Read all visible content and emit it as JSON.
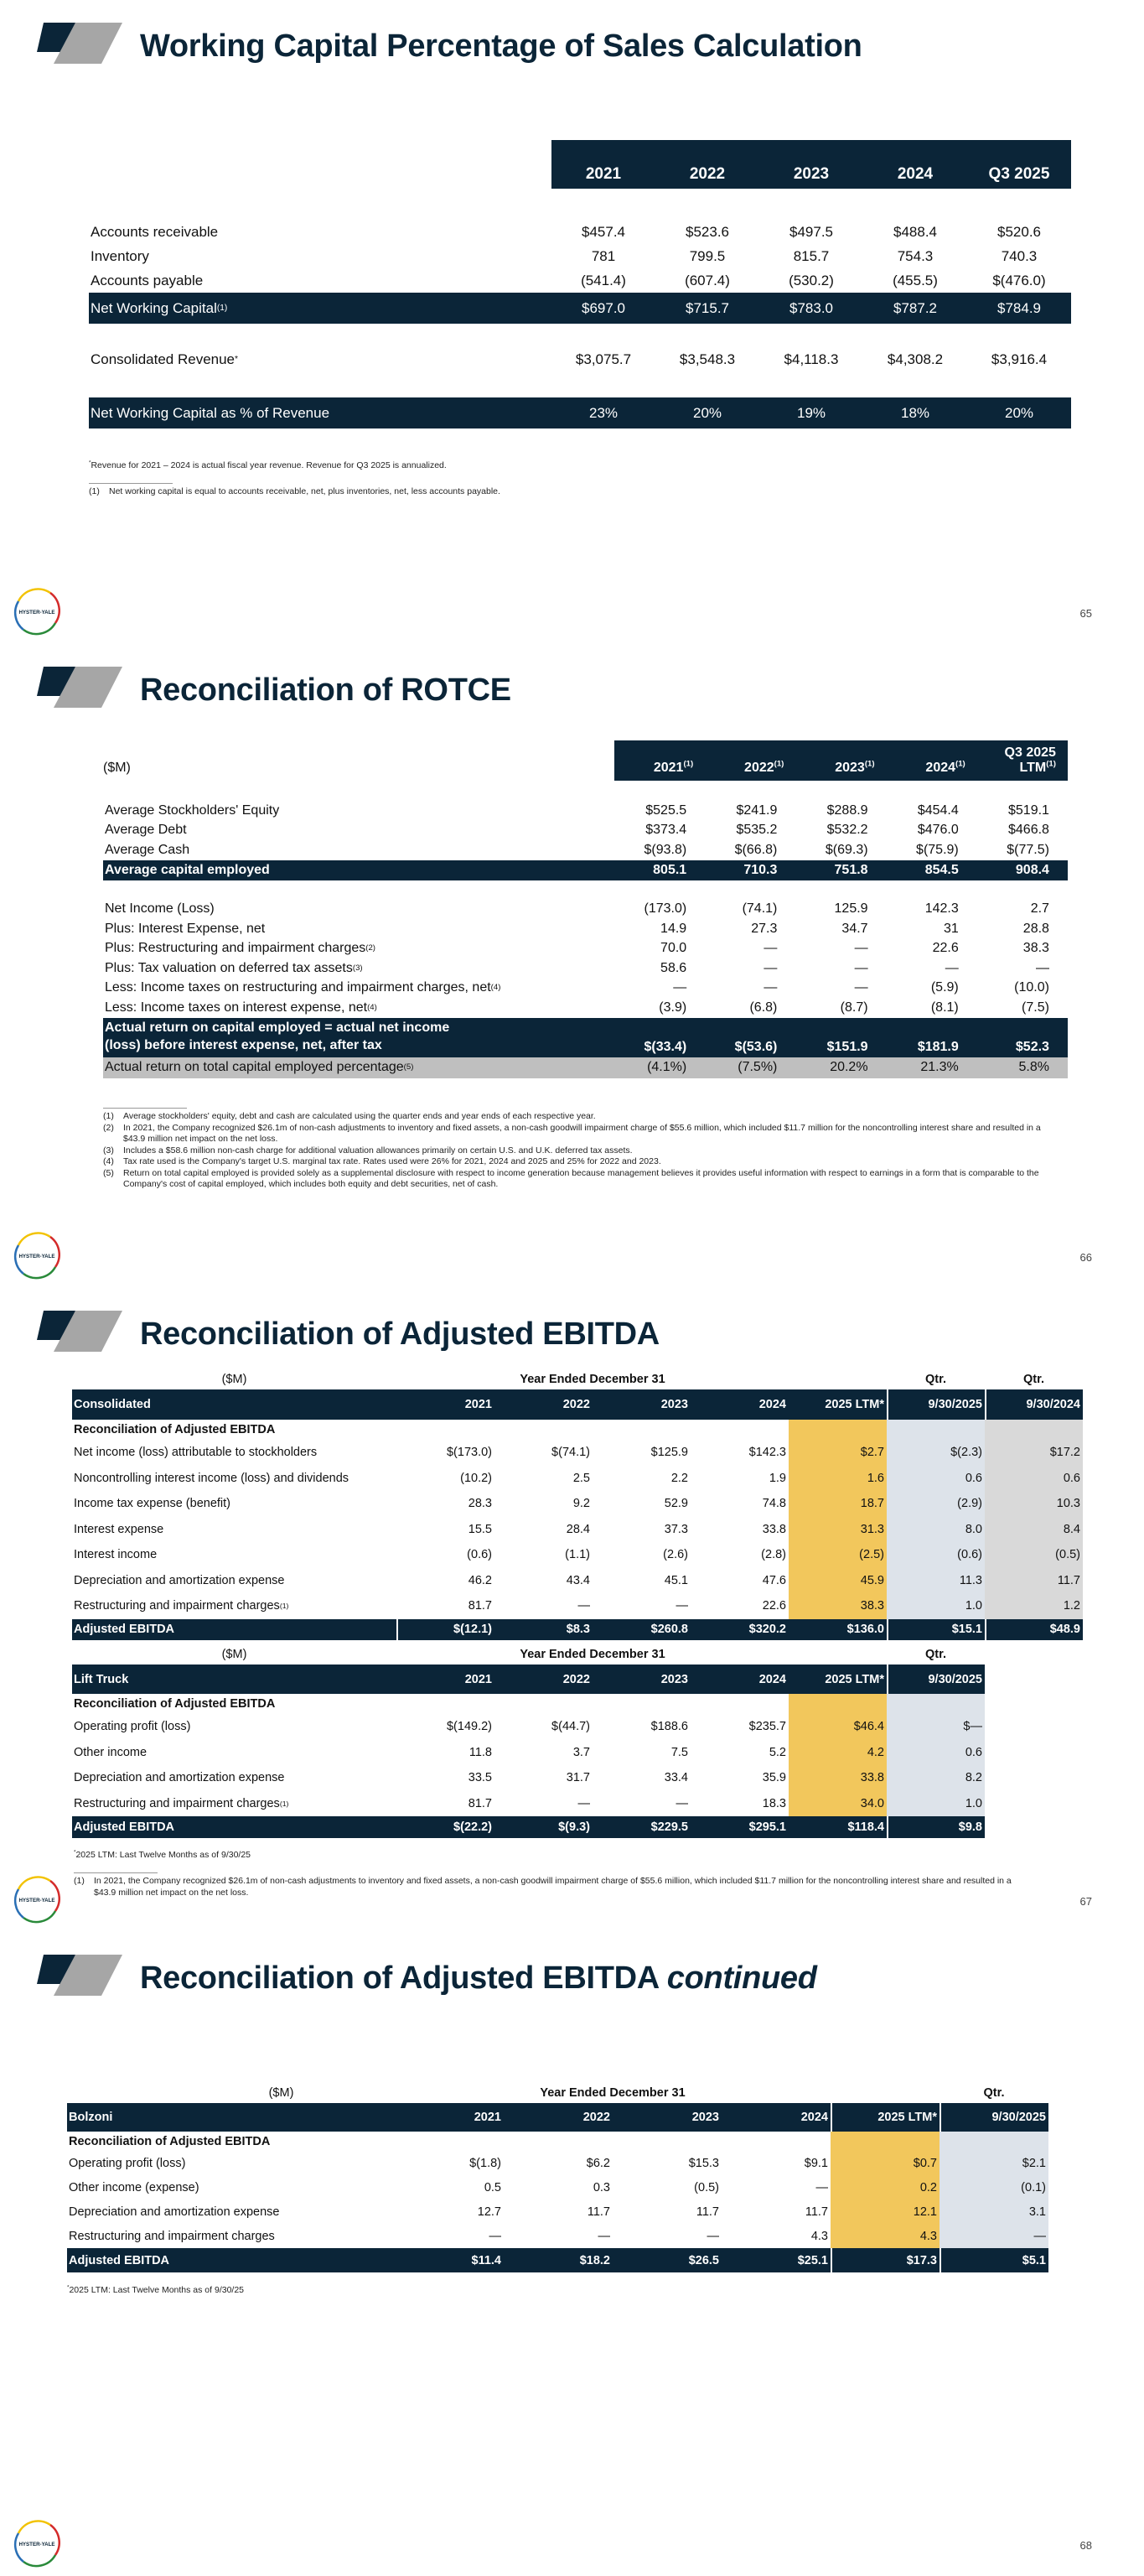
{
  "brand": {
    "logo_text": "HYSTER-YALE",
    "navy": "#0b2538",
    "gray": "#a6a6a6",
    "ltm_highlight": "#f2c75c",
    "qtr_highlight": "#dde3ea",
    "qtr_prior_highlight": "#d9d9d9"
  },
  "slide1": {
    "title": "Working Capital Percentage of Sales Calculation",
    "page": "65",
    "table": {
      "columns": [
        "2021",
        "2022",
        "2023",
        "2024",
        "Q3 2025"
      ],
      "rows": [
        {
          "label": "Accounts receivable",
          "values": [
            "$457.4",
            "$523.6",
            "$497.5",
            "$488.4",
            "$520.6"
          ],
          "kind": "normal"
        },
        {
          "label": "Inventory",
          "values": [
            "781",
            "799.5",
            "815.7",
            "754.3",
            "740.3"
          ],
          "kind": "normal"
        },
        {
          "label": "Accounts payable",
          "values": [
            "(541.4)",
            "(607.4)",
            "(530.2)",
            "(455.5)",
            "$(476.0)"
          ],
          "kind": "normal"
        },
        {
          "label": "Net Working Capital",
          "sup": "(1)",
          "values": [
            "$697.0",
            "$715.7",
            "$783.0",
            "$787.2",
            "$784.9"
          ],
          "kind": "total"
        },
        {
          "label": "Consolidated Revenue",
          "sup": "*",
          "values": [
            "$3,075.7",
            "$3,548.3",
            "$4,118.3",
            "$4,308.2",
            "$3,916.4"
          ],
          "kind": "normal"
        },
        {
          "label": "Net Working Capital as % of Revenue",
          "values": [
            "23%",
            "20%",
            "19%",
            "18%",
            "20%"
          ],
          "kind": "total"
        }
      ]
    },
    "note_star": "Revenue for 2021 – 2024 is actual fiscal year revenue. Revenue for Q3 2025 is annualized.",
    "footnotes": [
      {
        "num": "(1)",
        "text": "Net working capital is equal to accounts receivable, net, plus inventories, net, less accounts payable."
      }
    ]
  },
  "slide2": {
    "title": "Reconciliation of ROTCE",
    "page": "66",
    "table": {
      "header_label": "($M)",
      "columns": [
        {
          "label": "2021",
          "sup": "(1)"
        },
        {
          "label": "2022",
          "sup": "(1)"
        },
        {
          "label": "2023",
          "sup": "(1)"
        },
        {
          "label": "2024",
          "sup": "(1)"
        },
        {
          "top": "Q3 2025",
          "label": "LTM",
          "sup": "(1)"
        }
      ],
      "rows": [
        {
          "label": "Average Stockholders' Equity",
          "values": [
            "$525.5",
            "$241.9",
            "$288.9",
            "$454.4",
            "$519.1"
          ],
          "kind": "normal"
        },
        {
          "label": "Average Debt",
          "values": [
            "$373.4",
            "$535.2",
            "$532.2",
            "$476.0",
            "$466.8"
          ],
          "kind": "normal"
        },
        {
          "label": "Average Cash",
          "values": [
            "$(93.8)",
            "$(66.8)",
            "$(69.3)",
            "$(75.9)",
            "$(77.5)"
          ],
          "kind": "normal"
        },
        {
          "label": "Average capital employed",
          "values": [
            "805.1",
            "710.3",
            "751.8",
            "854.5",
            "908.4"
          ],
          "kind": "total"
        },
        {
          "label": "Net Income (Loss)",
          "values": [
            "(173.0)",
            "(74.1)",
            "125.9",
            "142.3",
            "2.7"
          ],
          "kind": "normal"
        },
        {
          "label": "Plus: Interest Expense, net",
          "values": [
            "14.9",
            "27.3",
            "34.7",
            "31",
            "28.8"
          ],
          "kind": "normal"
        },
        {
          "label": "Plus: Restructuring and impairment charges",
          "sup": "(2)",
          "values": [
            "70.0",
            "—",
            "—",
            "22.6",
            "38.3"
          ],
          "kind": "normal"
        },
        {
          "label": "Plus: Tax valuation on deferred tax assets",
          "sup": "(3)",
          "values": [
            "58.6",
            "—",
            "—",
            "—",
            "—"
          ],
          "kind": "normal"
        },
        {
          "label": "Less: Income taxes on restructuring and impairment charges, net",
          "sup": "(4)",
          "values": [
            "—",
            "—",
            "—",
            "(5.9)",
            "(10.0)"
          ],
          "kind": "normal"
        },
        {
          "label": "Less: Income taxes on interest expense, net",
          "sup": "(4)",
          "values": [
            "(3.9)",
            "(6.8)",
            "(8.7)",
            "(8.1)",
            "(7.5)"
          ],
          "kind": "normal"
        },
        {
          "label": "Actual return on capital employed = actual net income (loss) before interest expense, net, after tax",
          "values": [
            "$(33.4)",
            "$(53.6)",
            "$151.9",
            "$181.9",
            "$52.3"
          ],
          "kind": "total2"
        },
        {
          "label": "Actual return on total capital employed percentage",
          "sup": "(5)",
          "values": [
            "(4.1%)",
            "(7.5%)",
            "20.2%",
            "21.3%",
            "5.8%"
          ],
          "kind": "shaded"
        }
      ]
    },
    "footnotes": [
      {
        "num": "(1)",
        "text": "Average stockholders' equity, debt and cash are calculated using the quarter ends and year ends of each respective year."
      },
      {
        "num": "(2)",
        "text": "In 2021, the Company recognized $26.1m of non-cash adjustments to inventory and fixed assets, a non-cash goodwill impairment charge of $55.6 million, which included $11.7 million for the noncontrolling interest share and resulted in a $43.9 million net impact on the net loss."
      },
      {
        "num": "(3)",
        "text": "Includes a $58.6 million non-cash charge for additional valuation allowances primarily on certain U.S. and U.K. deferred tax assets."
      },
      {
        "num": "(4)",
        "text": "Tax rate used is the Company's target U.S. marginal tax rate. Rates used were 26% for 2021, 2024 and 2025 and 25% for 2022 and 2023."
      },
      {
        "num": "(5)",
        "text": "Return on total capital employed is provided solely as a supplemental disclosure with respect to income generation because management believes it provides useful information with respect to earnings in a form that is comparable to the Company's cost of capital employed, which includes both equity and debt securities, net of cash."
      }
    ]
  },
  "slide3": {
    "title": "Reconciliation of Adjusted EBITDA",
    "page": "67",
    "consolidated": {
      "superheader": {
        "unit": "($M)",
        "group": "Year Ended December 31",
        "qtr": [
          "Qtr.",
          "Qtr."
        ]
      },
      "header_label": "Consolidated",
      "columns": [
        "2021",
        "2022",
        "2023",
        "2024",
        "2025 LTM*",
        "9/30/2025",
        "9/30/2024"
      ],
      "rows": [
        {
          "label": "Reconciliation of Adjusted EBITDA",
          "values": [],
          "kind": "heading"
        },
        {
          "label": "Net income (loss) attributable to stockholders",
          "values": [
            "$(173.0)",
            "$(74.1)",
            "$125.9",
            "$142.3",
            "$2.7",
            "$(2.3)",
            "$17.2"
          ],
          "kind": "normal"
        },
        {
          "label": "Noncontrolling interest income (loss) and dividends",
          "values": [
            "(10.2)",
            "2.5",
            "2.2",
            "1.9",
            "1.6",
            "0.6",
            "0.6"
          ],
          "kind": "normal"
        },
        {
          "label": "Income tax expense (benefit)",
          "values": [
            "28.3",
            "9.2",
            "52.9",
            "74.8",
            "18.7",
            "(2.9)",
            "10.3"
          ],
          "kind": "normal"
        },
        {
          "label": "Interest expense",
          "values": [
            "15.5",
            "28.4",
            "37.3",
            "33.8",
            "31.3",
            "8.0",
            "8.4"
          ],
          "kind": "normal"
        },
        {
          "label": "Interest income",
          "values": [
            "(0.6)",
            "(1.1)",
            "(2.6)",
            "(2.8)",
            "(2.5)",
            "(0.6)",
            "(0.5)"
          ],
          "kind": "normal"
        },
        {
          "label": "Depreciation and amortization expense",
          "values": [
            "46.2",
            "43.4",
            "45.1",
            "47.6",
            "45.9",
            "11.3",
            "11.7"
          ],
          "kind": "normal"
        },
        {
          "label": "Restructuring and impairment charges",
          "sup": "(1)",
          "values": [
            "81.7",
            "—",
            "—",
            "22.6",
            "38.3",
            "1.0",
            "1.2"
          ],
          "kind": "normal"
        },
        {
          "label": "Adjusted EBITDA",
          "values": [
            "$(12.1)",
            "$8.3",
            "$260.8",
            "$320.2",
            "$136.0",
            "$15.1",
            "$48.9"
          ],
          "kind": "total"
        }
      ]
    },
    "lift_truck": {
      "superheader": {
        "unit": "($M)",
        "group": "Year Ended December 31",
        "qtr": [
          "Qtr."
        ]
      },
      "header_label": "Lift Truck",
      "columns": [
        "2021",
        "2022",
        "2023",
        "2024",
        "2025 LTM*",
        "9/30/2025"
      ],
      "rows": [
        {
          "label": "Reconciliation of Adjusted EBITDA",
          "values": [],
          "kind": "heading"
        },
        {
          "label": "Operating profit (loss)",
          "values": [
            "$(149.2)",
            "$(44.7)",
            "$188.6",
            "$235.7",
            "$46.4",
            "$—"
          ],
          "kind": "normal"
        },
        {
          "label": "Other income",
          "values": [
            "11.8",
            "3.7",
            "7.5",
            "5.2",
            "4.2",
            "0.6"
          ],
          "kind": "normal"
        },
        {
          "label": "Depreciation and amortization expense",
          "values": [
            "33.5",
            "31.7",
            "33.4",
            "35.9",
            "33.8",
            "8.2"
          ],
          "kind": "normal"
        },
        {
          "label": "Restructuring and impairment charges",
          "sup": "(1)",
          "values": [
            "81.7",
            "—",
            "—",
            "18.3",
            "34.0",
            "1.0"
          ],
          "kind": "normal"
        },
        {
          "label": "Adjusted EBITDA",
          "values": [
            "$(22.2)",
            "$(9.3)",
            "$229.5",
            "$295.1",
            "$118.4",
            "$9.8"
          ],
          "kind": "total"
        }
      ]
    },
    "note_star": "2025 LTM: Last Twelve Months as of 9/30/25",
    "footnotes": [
      {
        "num": "(1)",
        "text": "In 2021, the Company recognized $26.1m of non-cash adjustments to inventory and fixed assets, a non-cash goodwill impairment charge of $55.6 million, which included $11.7 million for the noncontrolling interest share and resulted in a $43.9 million net impact on the net loss."
      }
    ]
  },
  "slide4": {
    "title": "Reconciliation of Adjusted EBITDA",
    "title_suffix": "continued",
    "page": "68",
    "bolzoni": {
      "superheader": {
        "unit": "($M)",
        "group": "Year Ended December 31",
        "qtr": [
          "Qtr."
        ]
      },
      "header_label": "Bolzoni",
      "columns": [
        "2021",
        "2022",
        "2023",
        "2024",
        "2025 LTM*",
        "9/30/2025"
      ],
      "rows": [
        {
          "label": "Reconciliation of Adjusted EBITDA",
          "values": [],
          "kind": "heading"
        },
        {
          "label": "Operating profit (loss)",
          "values": [
            "$(1.8)",
            "$6.2",
            "$15.3",
            "$9.1",
            "$0.7",
            "$2.1"
          ],
          "kind": "normal"
        },
        {
          "label": "Other income (expense)",
          "values": [
            "0.5",
            "0.3",
            "(0.5)",
            "—",
            "0.2",
            "(0.1)"
          ],
          "kind": "normal"
        },
        {
          "label": "Depreciation and amortization expense",
          "values": [
            "12.7",
            "11.7",
            "11.7",
            "11.7",
            "12.1",
            "3.1"
          ],
          "kind": "normal"
        },
        {
          "label": "Restructuring and impairment charges",
          "values": [
            "—",
            "—",
            "—",
            "4.3",
            "4.3",
            "—"
          ],
          "kind": "normal"
        },
        {
          "label": "Adjusted EBITDA",
          "values": [
            "$11.4",
            "$18.2",
            "$26.5",
            "$25.1",
            "$17.3",
            "$5.1"
          ],
          "kind": "total"
        }
      ]
    },
    "note_star": "2025 LTM: Last Twelve Months as of 9/30/25"
  }
}
